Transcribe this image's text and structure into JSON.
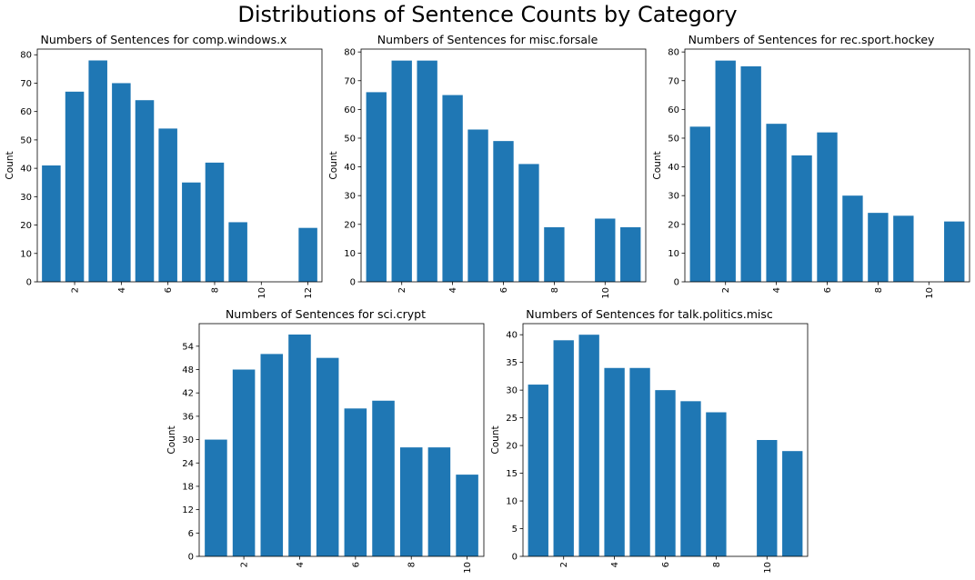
{
  "figure": {
    "title": "Distributions of Sentence Counts by Category",
    "bar_color": "#1f77b4"
  },
  "chart_data": [
    {
      "type": "bar",
      "title": "Numbers of Sentences for comp.windows.x",
      "xlabel": "",
      "ylabel": "Count",
      "x": [
        1,
        2,
        3,
        4,
        5,
        6,
        7,
        8,
        9,
        12
      ],
      "values": [
        41,
        67,
        78,
        70,
        64,
        54,
        35,
        42,
        21,
        19
      ],
      "xlim": [
        0.4,
        12.6
      ],
      "ylim": [
        0,
        82
      ],
      "xticks": [
        2,
        4,
        6,
        8,
        10,
        12
      ],
      "yticks": [
        0,
        10,
        20,
        30,
        40,
        50,
        60,
        70,
        80
      ],
      "xtick_rotation": 90,
      "grid": false
    },
    {
      "type": "bar",
      "title": "Numbers of Sentences for misc.forsale",
      "xlabel": "",
      "ylabel": "Count",
      "x": [
        1,
        2,
        3,
        4,
        5,
        6,
        7,
        8,
        10,
        11
      ],
      "values": [
        66,
        77,
        77,
        65,
        53,
        49,
        41,
        19,
        22,
        19
      ],
      "xlim": [
        0.4,
        11.6
      ],
      "ylim": [
        0,
        81
      ],
      "xticks": [
        2,
        4,
        6,
        8,
        10
      ],
      "yticks": [
        0,
        10,
        20,
        30,
        40,
        50,
        60,
        70,
        80
      ],
      "xtick_rotation": 90,
      "grid": false
    },
    {
      "type": "bar",
      "title": "Numbers of Sentences for rec.sport.hockey",
      "xlabel": "",
      "ylabel": "Count",
      "x": [
        1,
        2,
        3,
        4,
        5,
        6,
        7,
        8,
        9,
        11
      ],
      "values": [
        54,
        77,
        75,
        55,
        44,
        52,
        30,
        24,
        23,
        21
      ],
      "xlim": [
        0.4,
        11.6
      ],
      "ylim": [
        0,
        81
      ],
      "xticks": [
        2,
        4,
        6,
        8,
        10
      ],
      "yticks": [
        0,
        10,
        20,
        30,
        40,
        50,
        60,
        70,
        80
      ],
      "xtick_rotation": 90,
      "grid": false
    },
    {
      "type": "bar",
      "title": "Numbers of Sentences for sci.crypt",
      "xlabel": "",
      "ylabel": "Count",
      "x": [
        1,
        2,
        3,
        4,
        5,
        6,
        7,
        8,
        9,
        10
      ],
      "values": [
        30,
        48,
        52,
        57,
        51,
        38,
        40,
        28,
        28,
        21
      ],
      "xlim": [
        0.4,
        10.6
      ],
      "ylim": [
        0,
        59.8
      ],
      "xticks": [
        2,
        4,
        6,
        8,
        10
      ],
      "yticks": [
        0,
        6,
        12,
        18,
        24,
        30,
        36,
        42,
        48,
        54
      ],
      "xtick_rotation": 90,
      "grid": false
    },
    {
      "type": "bar",
      "title": "Numbers of Sentences for talk.politics.misc",
      "xlabel": "",
      "ylabel": "Count",
      "x": [
        1,
        2,
        3,
        4,
        5,
        6,
        7,
        8,
        10,
        11
      ],
      "values": [
        31,
        39,
        40,
        34,
        34,
        30,
        28,
        26,
        21,
        19
      ],
      "xlim": [
        0.4,
        11.6
      ],
      "ylim": [
        0,
        42
      ],
      "xticks": [
        2,
        4,
        6,
        8,
        10
      ],
      "yticks": [
        0,
        5,
        10,
        15,
        20,
        25,
        30,
        35,
        40
      ],
      "xtick_rotation": 90,
      "grid": false
    }
  ]
}
